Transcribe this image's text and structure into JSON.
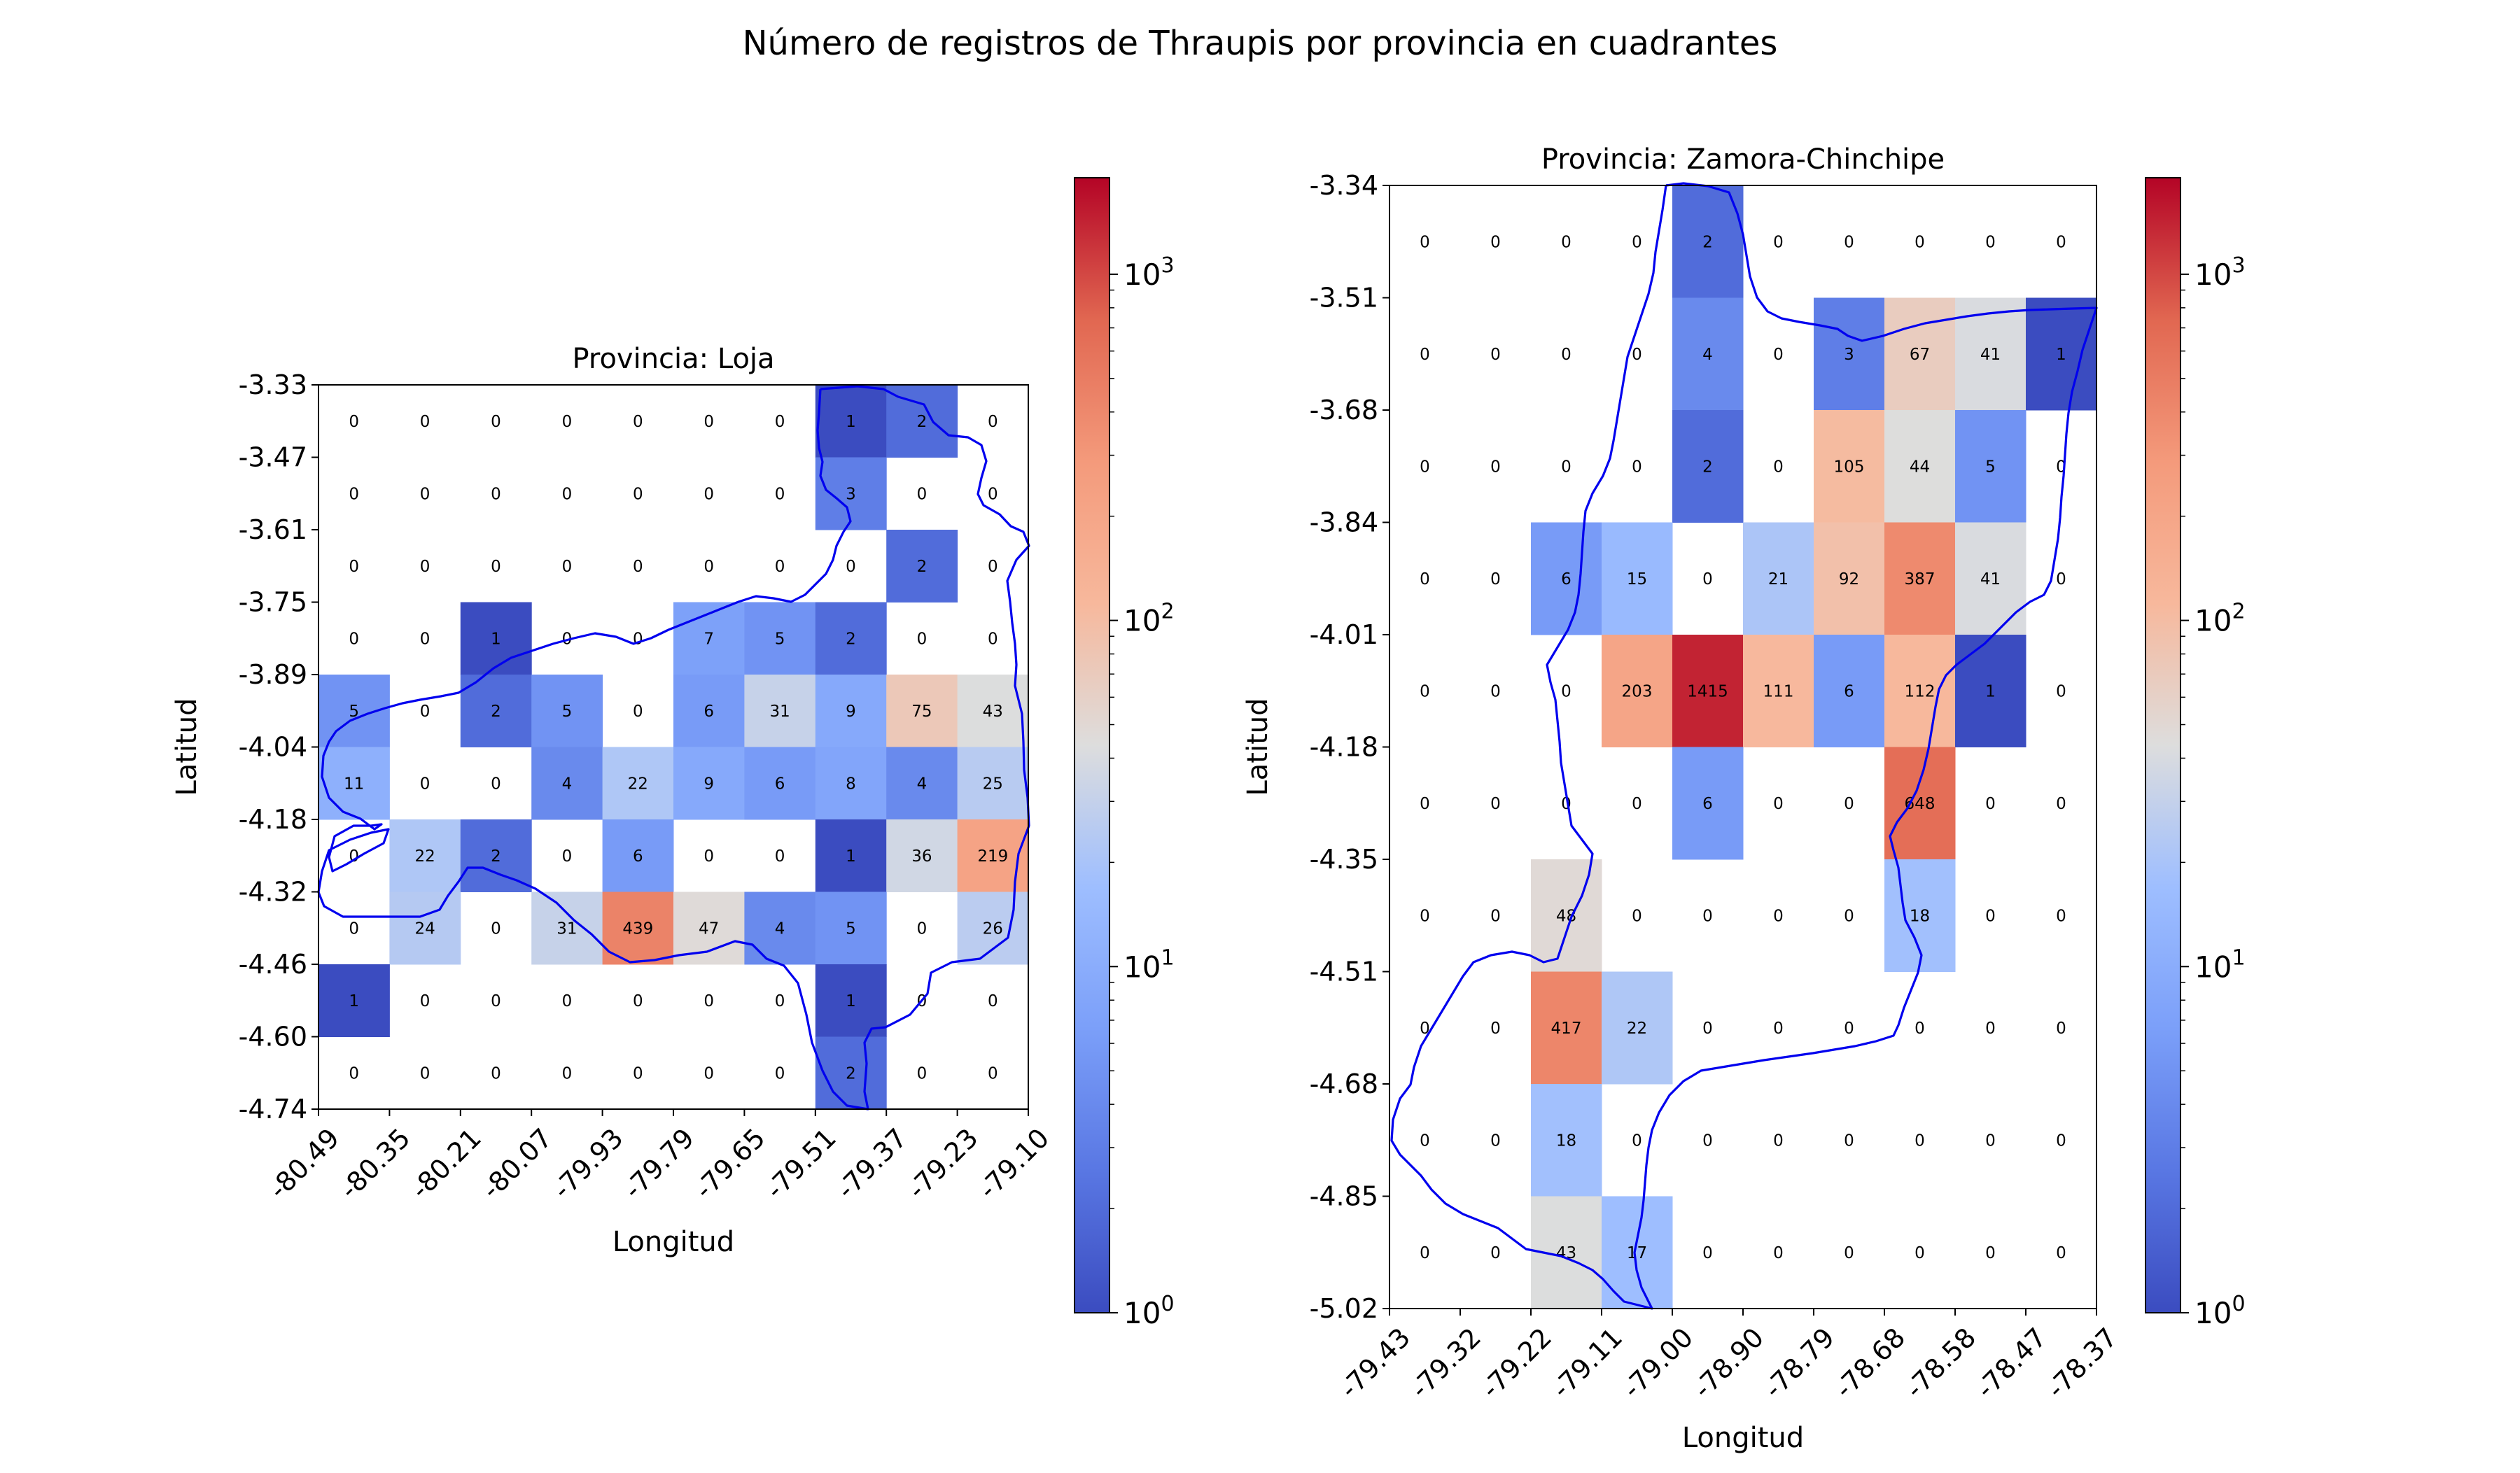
{
  "figure_title": "Número de registros de Thraupis por provincia en cuadrantes",
  "colors": {
    "boundary": "#0000ee",
    "colormap": "coolwarm",
    "zero_cell": "#ffffff"
  },
  "colorbar": {
    "scale": "log",
    "min": 1,
    "max": 1900,
    "ticks": [
      {
        "value": 1,
        "base": "10",
        "exp": "0"
      },
      {
        "value": 10,
        "base": "10",
        "exp": "1"
      },
      {
        "value": 100,
        "base": "10",
        "exp": "2"
      },
      {
        "value": 1000,
        "base": "10",
        "exp": "3"
      }
    ]
  },
  "chart_data": [
    {
      "type": "heatmap",
      "title": "Provincia: Loja",
      "xlabel": "Longitud",
      "ylabel": "Latitud",
      "x_ticks": [
        "-80.49",
        "-80.35",
        "-80.21",
        "-80.07",
        "-79.93",
        "-79.79",
        "-79.65",
        "-79.51",
        "-79.37",
        "-79.23",
        "-79.10"
      ],
      "y_ticks": [
        "-3.33",
        "-3.47",
        "-3.61",
        "-3.75",
        "-3.89",
        "-4.04",
        "-4.18",
        "-4.32",
        "-4.46",
        "-4.60",
        "-4.74"
      ],
      "xlim": [
        -80.49,
        -79.1
      ],
      "ylim": [
        -4.74,
        -3.33
      ],
      "values": [
        [
          0,
          0,
          0,
          0,
          0,
          0,
          0,
          1,
          2,
          0
        ],
        [
          0,
          0,
          0,
          0,
          0,
          0,
          0,
          3,
          0,
          0
        ],
        [
          0,
          0,
          0,
          0,
          0,
          0,
          0,
          0,
          2,
          0
        ],
        [
          0,
          0,
          1,
          0,
          0,
          7,
          5,
          2,
          0,
          0
        ],
        [
          5,
          0,
          2,
          5,
          0,
          6,
          31,
          9,
          75,
          43
        ],
        [
          11,
          0,
          0,
          4,
          22,
          9,
          6,
          8,
          4,
          25
        ],
        [
          0,
          22,
          2,
          0,
          6,
          0,
          0,
          1,
          36,
          219
        ],
        [
          0,
          24,
          0,
          31,
          439,
          47,
          4,
          5,
          0,
          26
        ],
        [
          1,
          0,
          0,
          0,
          0,
          0,
          0,
          1,
          0,
          0
        ],
        [
          0,
          0,
          0,
          0,
          0,
          0,
          0,
          2,
          0,
          0
        ]
      ]
    },
    {
      "type": "heatmap",
      "title": "Provincia: Zamora-Chinchipe",
      "xlabel": "Longitud",
      "ylabel": "Latitud",
      "x_ticks": [
        "-79.43",
        "-79.32",
        "-79.22",
        "-79.11",
        "-79.00",
        "-78.90",
        "-78.79",
        "-78.68",
        "-78.58",
        "-78.47",
        "-78.37"
      ],
      "y_ticks": [
        "-3.34",
        "-3.51",
        "-3.68",
        "-3.84",
        "-4.01",
        "-4.18",
        "-4.35",
        "-4.51",
        "-4.68",
        "-4.85",
        "-5.02"
      ],
      "xlim": [
        -79.43,
        -78.37
      ],
      "ylim": [
        -5.02,
        -3.34
      ],
      "values": [
        [
          0,
          0,
          0,
          0,
          2,
          0,
          0,
          0,
          0,
          0
        ],
        [
          0,
          0,
          0,
          0,
          4,
          0,
          3,
          67,
          41,
          1
        ],
        [
          0,
          0,
          0,
          0,
          2,
          0,
          105,
          44,
          5,
          0
        ],
        [
          0,
          0,
          6,
          15,
          0,
          21,
          92,
          387,
          41,
          0
        ],
        [
          0,
          0,
          0,
          203,
          1415,
          111,
          6,
          112,
          1,
          0
        ],
        [
          0,
          0,
          0,
          0,
          6,
          0,
          0,
          648,
          0,
          0
        ],
        [
          0,
          0,
          48,
          0,
          0,
          0,
          0,
          18,
          0,
          0
        ],
        [
          0,
          0,
          417,
          22,
          0,
          0,
          0,
          0,
          0,
          0
        ],
        [
          0,
          0,
          18,
          0,
          0,
          0,
          0,
          0,
          0,
          0
        ],
        [
          0,
          0,
          43,
          17,
          0,
          0,
          0,
          0,
          0,
          0
        ]
      ]
    }
  ]
}
